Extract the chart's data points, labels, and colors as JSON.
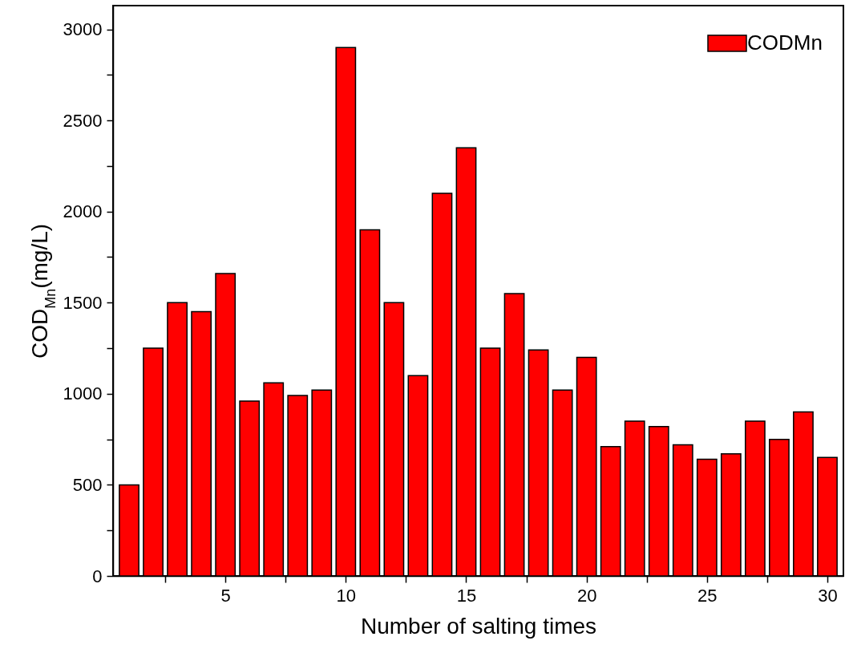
{
  "chart_data": {
    "type": "bar",
    "xlabel": "Number of salting times",
    "ylabel": "COD$_{Mn}$(mg/L)",
    "x": [
      1,
      2,
      3,
      4,
      5,
      6,
      7,
      8,
      9,
      10,
      11,
      12,
      13,
      14,
      15,
      16,
      17,
      18,
      19,
      20,
      21,
      22,
      23,
      24,
      25,
      26,
      27,
      28,
      29,
      30
    ],
    "series": [
      {
        "name": "CODMn",
        "color": "#ff0000",
        "values": [
          500,
          1250,
          1500,
          1450,
          1660,
          960,
          1060,
          990,
          1020,
          2900,
          1900,
          1500,
          1100,
          2100,
          2350,
          1250,
          1550,
          1240,
          1020,
          1200,
          710,
          850,
          820,
          720,
          640,
          670,
          850,
          750,
          900,
          650
        ]
      }
    ],
    "xlim": [
      0.5,
      30.5
    ],
    "xticks": [
      {
        "value": 2.5,
        "label": null
      },
      5,
      {
        "value": 7.5,
        "label": null
      },
      10,
      {
        "value": 12.5,
        "label": null
      },
      15,
      {
        "value": 17.5,
        "label": null
      },
      20,
      {
        "value": 22.5,
        "label": null
      },
      25,
      {
        "value": 27.5,
        "label": null
      },
      30
    ],
    "ylim": [
      0,
      3130
    ],
    "yticks": [
      0,
      {
        "value": 250,
        "label": null
      },
      500,
      {
        "value": 750,
        "label": null
      },
      1000,
      {
        "value": 1250,
        "label": null
      },
      1500,
      {
        "value": 1750,
        "label": null
      },
      2000,
      {
        "value": 2250,
        "label": null
      },
      2500,
      {
        "value": 2750,
        "label": null
      },
      3000
    ],
    "legend": "top right"
  }
}
